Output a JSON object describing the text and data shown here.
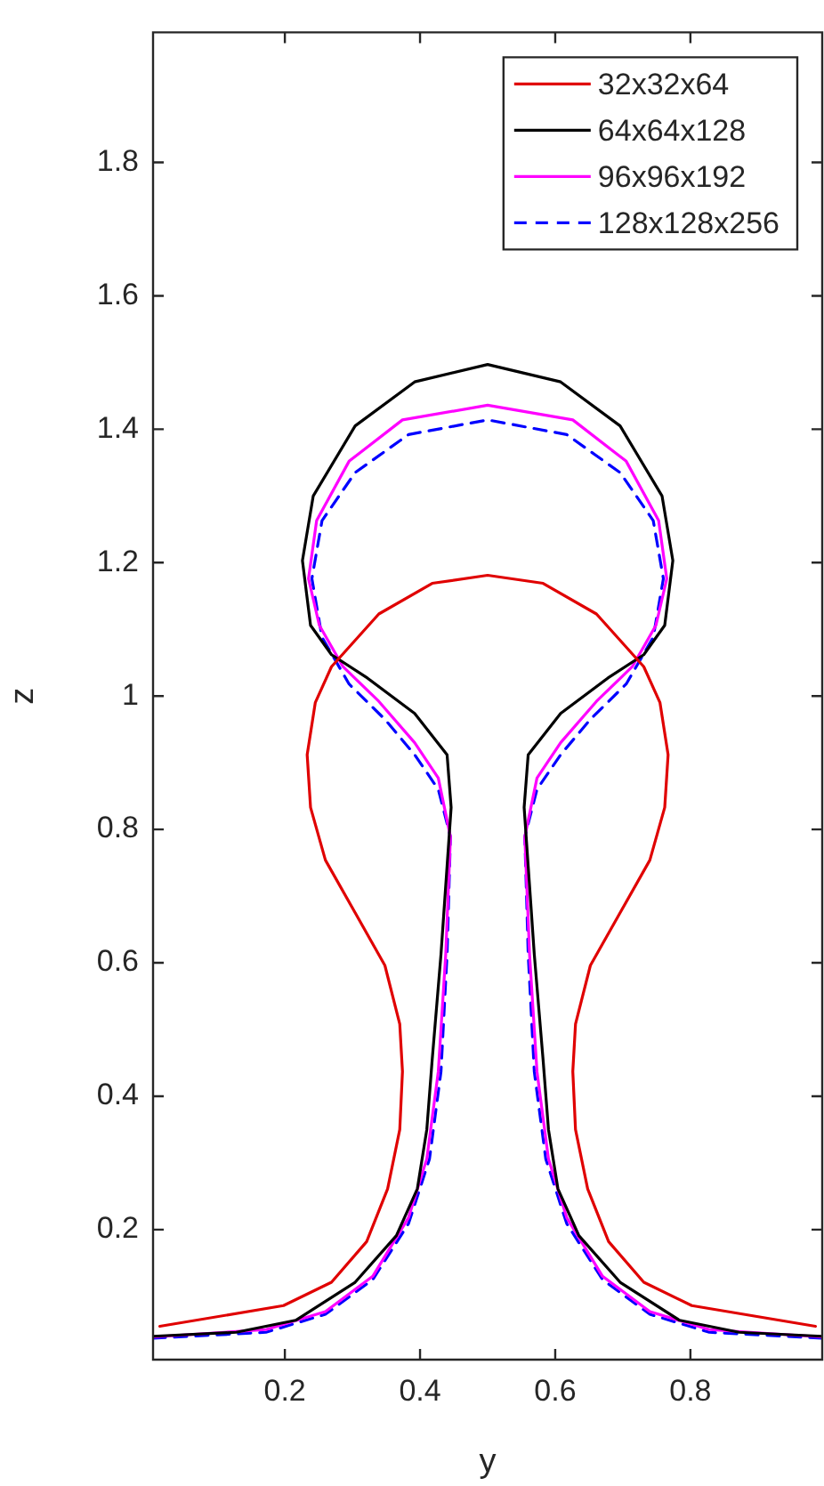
{
  "chart_data": {
    "type": "line",
    "xlabel": "y",
    "ylabel": "z",
    "xlim": [
      0.005,
      0.995
    ],
    "ylim": [
      0.005,
      1.995
    ],
    "xticks": [
      0.2,
      0.4,
      0.6,
      0.8
    ],
    "yticks": [
      0.2,
      0.4,
      0.6,
      0.8,
      1,
      1.2,
      1.4,
      1.6,
      1.8
    ],
    "grid": false,
    "legend": "top right",
    "marker": "none",
    "series": [
      {
        "name": "32x32x64",
        "color": "#e00000",
        "line_style": "solid",
        "x": [
          0.015,
          0.198,
          0.269,
          0.321,
          0.352,
          0.37,
          0.374,
          0.37,
          0.348,
          0.304,
          0.26,
          0.238,
          0.233,
          0.245,
          0.269,
          0.339,
          0.418,
          0.5,
          0.582,
          0.661,
          0.731,
          0.755,
          0.767,
          0.762,
          0.74,
          0.696,
          0.652,
          0.63,
          0.626,
          0.63,
          0.648,
          0.679,
          0.731,
          0.802,
          0.985
        ],
        "values": [
          0.055,
          0.086,
          0.121,
          0.182,
          0.261,
          0.35,
          0.437,
          0.508,
          0.596,
          0.675,
          0.754,
          0.833,
          0.912,
          0.99,
          1.044,
          1.123,
          1.169,
          1.181,
          1.169,
          1.123,
          1.044,
          0.99,
          0.912,
          0.833,
          0.754,
          0.675,
          0.596,
          0.508,
          0.437,
          0.35,
          0.261,
          0.182,
          0.121,
          0.086,
          0.055
        ]
      },
      {
        "name": "64x64x128",
        "color": "#000000",
        "line_style": "solid",
        "x": [
          0.005,
          0.128,
          0.216,
          0.304,
          0.365,
          0.396,
          0.41,
          0.418,
          0.431,
          0.44,
          0.446,
          0.44,
          0.392,
          0.322,
          0.269,
          0.238,
          0.226,
          0.242,
          0.304,
          0.392,
          0.5,
          0.608,
          0.696,
          0.758,
          0.774,
          0.762,
          0.731,
          0.678,
          0.608,
          0.56,
          0.554,
          0.56,
          0.569,
          0.582,
          0.59,
          0.604,
          0.635,
          0.696,
          0.784,
          0.872,
          0.995
        ],
        "values": [
          0.04,
          0.046,
          0.064,
          0.121,
          0.191,
          0.261,
          0.35,
          0.455,
          0.613,
          0.745,
          0.833,
          0.912,
          0.974,
          1.027,
          1.062,
          1.106,
          1.203,
          1.3,
          1.405,
          1.471,
          1.497,
          1.471,
          1.405,
          1.3,
          1.203,
          1.106,
          1.062,
          1.027,
          0.974,
          0.912,
          0.833,
          0.745,
          0.613,
          0.455,
          0.35,
          0.261,
          0.191,
          0.121,
          0.064,
          0.046,
          0.04
        ]
      },
      {
        "name": "96x96x192",
        "color": "#ff00ff",
        "line_style": "solid",
        "x": [
          0.005,
          0.172,
          0.26,
          0.33,
          0.383,
          0.41,
          0.427,
          0.438,
          0.445,
          0.427,
          0.392,
          0.339,
          0.286,
          0.251,
          0.235,
          0.247,
          0.295,
          0.374,
          0.5,
          0.626,
          0.705,
          0.753,
          0.765,
          0.749,
          0.714,
          0.661,
          0.608,
          0.573,
          0.555,
          0.562,
          0.573,
          0.59,
          0.617,
          0.67,
          0.74,
          0.828,
          0.995
        ],
        "values": [
          0.039,
          0.05,
          0.077,
          0.13,
          0.218,
          0.306,
          0.437,
          0.613,
          0.789,
          0.877,
          0.93,
          0.992,
          1.044,
          1.106,
          1.176,
          1.263,
          1.352,
          1.414,
          1.436,
          1.414,
          1.352,
          1.263,
          1.176,
          1.106,
          1.044,
          0.992,
          0.93,
          0.877,
          0.789,
          0.613,
          0.437,
          0.306,
          0.218,
          0.13,
          0.077,
          0.05,
          0.039
        ]
      },
      {
        "name": "128x128x256",
        "color": "#0000ff",
        "line_style": "dashed",
        "x": [
          0.005,
          0.172,
          0.26,
          0.33,
          0.383,
          0.414,
          0.431,
          0.44,
          0.445,
          0.427,
          0.392,
          0.348,
          0.295,
          0.255,
          0.24,
          0.255,
          0.304,
          0.383,
          0.5,
          0.617,
          0.696,
          0.745,
          0.76,
          0.745,
          0.705,
          0.652,
          0.608,
          0.573,
          0.555,
          0.56,
          0.569,
          0.586,
          0.617,
          0.67,
          0.74,
          0.828,
          0.995
        ],
        "values": [
          0.037,
          0.046,
          0.073,
          0.125,
          0.209,
          0.306,
          0.437,
          0.613,
          0.789,
          0.86,
          0.912,
          0.965,
          1.018,
          1.088,
          1.176,
          1.263,
          1.335,
          1.392,
          1.414,
          1.392,
          1.335,
          1.263,
          1.176,
          1.088,
          1.018,
          0.965,
          0.912,
          0.86,
          0.789,
          0.613,
          0.437,
          0.306,
          0.209,
          0.125,
          0.073,
          0.046,
          0.037
        ]
      }
    ]
  }
}
